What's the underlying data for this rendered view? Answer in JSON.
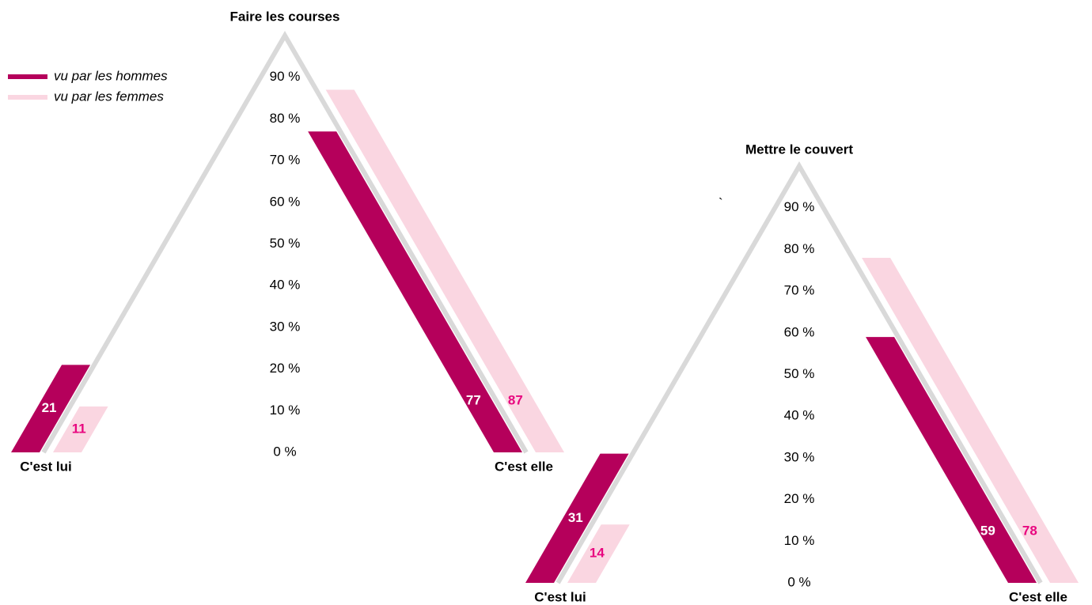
{
  "chart_data": [
    {
      "type": "tent",
      "title": "Faire les courses",
      "categories": [
        "C'est lui",
        "C'est elle"
      ],
      "series": [
        {
          "name": "vu par les hommes",
          "color": "#b5005b",
          "label_color": "#ffffff",
          "values": [
            21,
            77
          ]
        },
        {
          "name": "vu par les femmes",
          "color": "#fad6e1",
          "label_color": "#e8067f",
          "values": [
            11,
            87
          ]
        }
      ],
      "ylim": [
        0,
        100
      ],
      "yticks": [
        {
          "value": 0,
          "label": "0 %"
        },
        {
          "value": 10,
          "label": "10 %"
        },
        {
          "value": 20,
          "label": "20 %"
        },
        {
          "value": 30,
          "label": "30 %"
        },
        {
          "value": 40,
          "label": "40 %"
        },
        {
          "value": 50,
          "label": "50 %"
        },
        {
          "value": 60,
          "label": "60 %"
        },
        {
          "value": 70,
          "label": "70 %"
        },
        {
          "value": 80,
          "label": "80 %"
        },
        {
          "value": 90,
          "label": "90 %"
        }
      ],
      "legend": "top-left"
    },
    {
      "type": "tent",
      "title": "Mettre le couvert",
      "annotation": "`",
      "categories": [
        "C'est lui",
        "C'est elle"
      ],
      "series": [
        {
          "color": "#b5005b",
          "label_color": "#ffffff",
          "values": [
            31,
            59
          ]
        },
        {
          "color": "#fad6e1",
          "label_color": "#e8067f",
          "values": [
            14,
            78
          ]
        }
      ],
      "ylim": [
        0,
        100
      ],
      "yticks": [
        {
          "value": 0,
          "label": "0 %"
        },
        {
          "value": 10,
          "label": "10 %"
        },
        {
          "value": 20,
          "label": "20 %"
        },
        {
          "value": 30,
          "label": "30 %"
        },
        {
          "value": 40,
          "label": "40 %"
        },
        {
          "value": 50,
          "label": "50 %"
        },
        {
          "value": 60,
          "label": "60 %"
        },
        {
          "value": 70,
          "label": "70 %"
        },
        {
          "value": 80,
          "label": "80 %"
        },
        {
          "value": 90,
          "label": "90 %"
        }
      ]
    }
  ]
}
